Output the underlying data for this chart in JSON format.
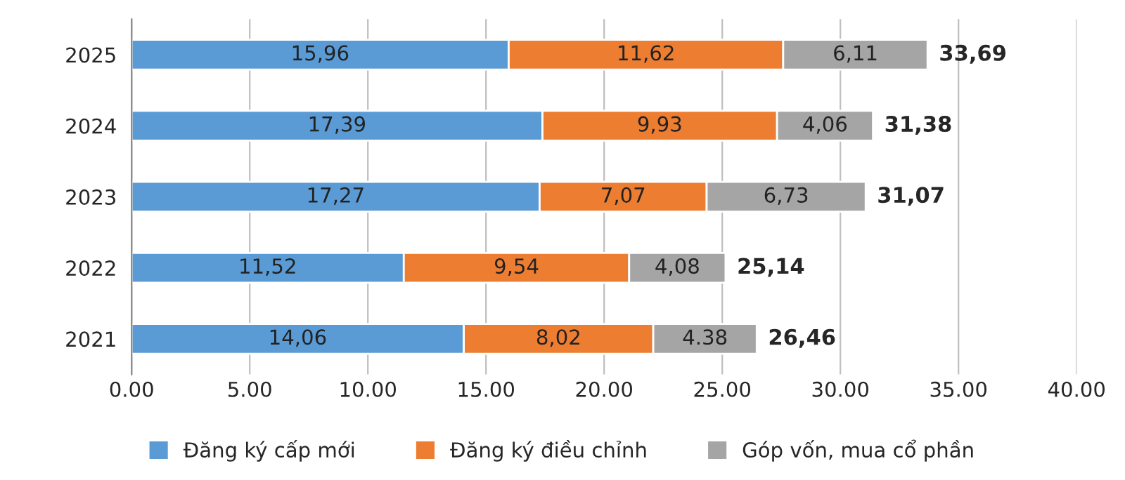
{
  "chart_data": {
    "type": "bar",
    "orientation": "horizontal",
    "stacked": true,
    "categories": [
      "2025",
      "2024",
      "2023",
      "2022",
      "2021"
    ],
    "series": [
      {
        "name": "Đăng ký cấp mới",
        "color": "#5b9bd5",
        "values": [
          15.96,
          17.39,
          17.27,
          11.52,
          14.06
        ],
        "value_labels": [
          "15,96",
          "17,39",
          "17,27",
          "11,52",
          "14,06"
        ]
      },
      {
        "name": "Đăng ký điều chỉnh",
        "color": "#ed7d31",
        "values": [
          11.62,
          9.93,
          7.07,
          9.54,
          8.02
        ],
        "value_labels": [
          "11,62",
          "9,93",
          "7,07",
          "9,54",
          "8,02"
        ]
      },
      {
        "name": "Góp vốn, mua cổ phần",
        "color": "#a5a5a5",
        "values": [
          6.11,
          4.06,
          6.73,
          4.08,
          4.38
        ],
        "value_labels": [
          "6,11",
          "4,06",
          "6,73",
          "4,08",
          "4.38"
        ]
      }
    ],
    "totals": [
      "33,69",
      "31,38",
      "31,07",
      "25,14",
      "26,46"
    ],
    "xlim": [
      0,
      40
    ],
    "xticks": [
      {
        "value": 0,
        "label": "0.00"
      },
      {
        "value": 5,
        "label": "5.00"
      },
      {
        "value": 10,
        "label": "10.00"
      },
      {
        "value": 15,
        "label": "15.00"
      },
      {
        "value": 20,
        "label": "20.00"
      },
      {
        "value": 25,
        "label": "25.00"
      },
      {
        "value": 30,
        "label": "30.00"
      },
      {
        "value": 35,
        "label": "35.00"
      },
      {
        "value": 40,
        "label": "40.00"
      }
    ],
    "grid": "x",
    "legend": "bottom"
  }
}
